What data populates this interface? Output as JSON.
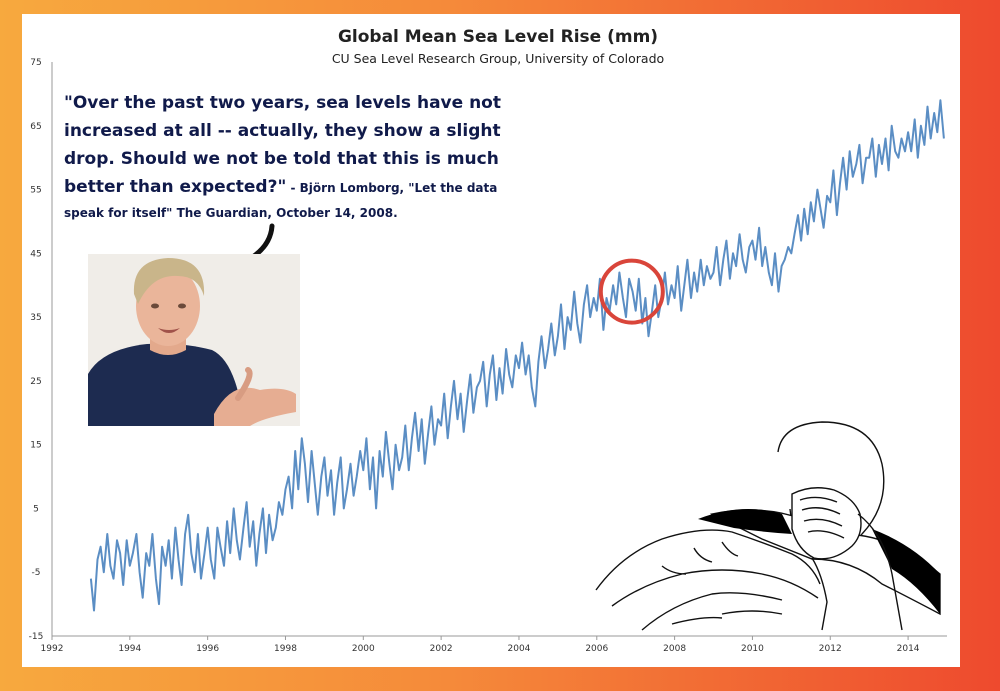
{
  "chart_data": {
    "type": "line",
    "title": "Global Mean Sea Level Rise (mm)",
    "subtitle": "CU Sea Level Research Group, University of Colorado",
    "xlabel": "",
    "ylabel": "",
    "xlim": [
      1992,
      2015
    ],
    "ylim": [
      -15,
      75
    ],
    "x_ticks": [
      "1992",
      "1994",
      "1996",
      "1998",
      "2000",
      "2002",
      "2004",
      "2006",
      "2008",
      "2010",
      "2012",
      "2014"
    ],
    "y_ticks": [
      "75",
      "65",
      "55",
      "45",
      "35",
      "25",
      "15",
      "5",
      "-5",
      "-15"
    ],
    "grid": false,
    "legend": "none",
    "series_color": "#5b8ec4",
    "highlight_color": "#d9453a",
    "series": [
      {
        "x": [
          1993.0,
          1993.08,
          1993.17,
          1993.25,
          1993.33,
          1993.42,
          1993.5,
          1993.58,
          1993.67,
          1993.75,
          1993.83,
          1993.92,
          1994.0,
          1994.08,
          1994.17,
          1994.25,
          1994.33,
          1994.42,
          1994.5,
          1994.58,
          1994.67,
          1994.75,
          1994.83,
          1994.92,
          1995.0,
          1995.08,
          1995.17,
          1995.25,
          1995.33,
          1995.42,
          1995.5,
          1995.58,
          1995.67,
          1995.75,
          1995.83,
          1995.92,
          1996.0,
          1996.08,
          1996.17,
          1996.25,
          1996.33,
          1996.42,
          1996.5,
          1996.58,
          1996.67,
          1996.75,
          1996.83,
          1996.92,
          1997.0,
          1997.08,
          1997.17,
          1997.25,
          1997.33,
          1997.42,
          1997.5,
          1997.58,
          1997.67,
          1997.75,
          1997.83,
          1997.92,
          1998.0,
          1998.08,
          1998.17,
          1998.25,
          1998.33,
          1998.42,
          1998.5,
          1998.58,
          1998.67,
          1998.75,
          1998.83,
          1998.92,
          1999.0,
          1999.08,
          1999.17,
          1999.25,
          1999.33,
          1999.42,
          1999.5,
          1999.58,
          1999.67,
          1999.75,
          1999.83,
          1999.92,
          2000.0,
          2000.08,
          2000.17,
          2000.25,
          2000.33,
          2000.42,
          2000.5,
          2000.58,
          2000.67,
          2000.75,
          2000.83,
          2000.92,
          2001.0,
          2001.08,
          2001.17,
          2001.25,
          2001.33,
          2001.42,
          2001.5,
          2001.58,
          2001.67,
          2001.75,
          2001.83,
          2001.92,
          2002.0,
          2002.08,
          2002.17,
          2002.25,
          2002.33,
          2002.42,
          2002.5,
          2002.58,
          2002.67,
          2002.75,
          2002.83,
          2002.92,
          2003.0,
          2003.08,
          2003.17,
          2003.25,
          2003.33,
          2003.42,
          2003.5,
          2003.58,
          2003.67,
          2003.75,
          2003.83,
          2003.92,
          2004.0,
          2004.08,
          2004.17,
          2004.25,
          2004.33,
          2004.42,
          2004.5,
          2004.58,
          2004.67,
          2004.75,
          2004.83,
          2004.92,
          2005.0,
          2005.08,
          2005.17,
          2005.25,
          2005.33,
          2005.42,
          2005.5,
          2005.58,
          2005.67,
          2005.75,
          2005.83,
          2005.92,
          2006.0,
          2006.08,
          2006.17,
          2006.25,
          2006.33,
          2006.42,
          2006.5,
          2006.58,
          2006.67,
          2006.75,
          2006.83,
          2006.92,
          2007.0,
          2007.08,
          2007.17,
          2007.25,
          2007.33,
          2007.42,
          2007.5,
          2007.58,
          2007.67,
          2007.75,
          2007.83,
          2007.92,
          2008.0,
          2008.08,
          2008.17,
          2008.25,
          2008.33,
          2008.42,
          2008.5,
          2008.58,
          2008.67,
          2008.75,
          2008.83,
          2008.92,
          2009.0,
          2009.08,
          2009.17,
          2009.25,
          2009.33,
          2009.42,
          2009.5,
          2009.58,
          2009.67,
          2009.75,
          2009.83,
          2009.92,
          2010.0,
          2010.08,
          2010.17,
          2010.25,
          2010.33,
          2010.42,
          2010.5,
          2010.58,
          2010.67,
          2010.75,
          2010.83,
          2010.92,
          2011.0,
          2011.08,
          2011.17,
          2011.25,
          2011.33,
          2011.42,
          2011.5,
          2011.58,
          2011.67,
          2011.75,
          2011.83,
          2011.92,
          2012.0,
          2012.08,
          2012.17,
          2012.25,
          2012.33,
          2012.42,
          2012.5,
          2012.58,
          2012.67,
          2012.75,
          2012.83,
          2012.92,
          2013.0,
          2013.08,
          2013.17,
          2013.25,
          2013.33,
          2013.42,
          2013.5,
          2013.58,
          2013.67,
          2013.75,
          2013.83,
          2013.92,
          2014.0,
          2014.08,
          2014.17,
          2014.25,
          2014.33,
          2014.42,
          2014.5,
          2014.58,
          2014.67,
          2014.75,
          2014.83,
          2014.92
        ],
        "y": [
          -6,
          -11,
          -3,
          -1,
          -5,
          1,
          -4,
          -6,
          0,
          -2,
          -7,
          0,
          -4,
          -2,
          1,
          -5,
          -9,
          -2,
          -4,
          1,
          -6,
          -10,
          -1,
          -4,
          0,
          -6,
          2,
          -3,
          -7,
          1,
          4,
          -2,
          -5,
          1,
          -6,
          -2,
          2,
          -3,
          -6,
          2,
          -1,
          -4,
          3,
          -2,
          5,
          0,
          -3,
          2,
          6,
          -1,
          3,
          -4,
          1,
          5,
          -2,
          4,
          0,
          2,
          6,
          4,
          8,
          10,
          5,
          14,
          8,
          16,
          12,
          6,
          14,
          9,
          4,
          10,
          13,
          7,
          11,
          4,
          9,
          13,
          5,
          8,
          12,
          7,
          10,
          14,
          11,
          16,
          8,
          13,
          5,
          14,
          10,
          17,
          12,
          8,
          15,
          11,
          13,
          18,
          11,
          16,
          20,
          14,
          19,
          12,
          17,
          21,
          15,
          19,
          18,
          23,
          16,
          21,
          25,
          19,
          23,
          17,
          22,
          26,
          20,
          24,
          25,
          28,
          21,
          26,
          29,
          22,
          27,
          23,
          30,
          26,
          24,
          29,
          27,
          31,
          26,
          29,
          24,
          21,
          28,
          32,
          27,
          30,
          34,
          29,
          32,
          37,
          30,
          35,
          33,
          39,
          34,
          31,
          37,
          40,
          35,
          38,
          36,
          41,
          33,
          38,
          36,
          40,
          37,
          42,
          38,
          35,
          41,
          39,
          36,
          41,
          34,
          38,
          32,
          36,
          40,
          35,
          38,
          42,
          37,
          40,
          38,
          43,
          36,
          40,
          44,
          38,
          42,
          39,
          44,
          40,
          43,
          41,
          42,
          46,
          40,
          44,
          47,
          41,
          45,
          43,
          48,
          44,
          42,
          46,
          47,
          44,
          49,
          43,
          46,
          42,
          40,
          45,
          39,
          43,
          44,
          46,
          45,
          48,
          51,
          47,
          52,
          48,
          53,
          50,
          55,
          52,
          49,
          54,
          53,
          58,
          51,
          56,
          60,
          55,
          61,
          57,
          59,
          62,
          56,
          60,
          60,
          63,
          57,
          62,
          59,
          63,
          58,
          65,
          61,
          60,
          63,
          61,
          64,
          61,
          66,
          60,
          65,
          62,
          68,
          63,
          67,
          64,
          69,
          63
        ]
      }
    ],
    "annotation": {
      "quote_lines": [
        "\"Over the past two years, sea levels have not",
        "increased at all -- actually, they show a slight",
        "drop. Should we not be told that this is much",
        "better than expected?\""
      ],
      "attribution_line1": " - Björn Lomborg, \"Let the data",
      "attribution_line2": "speak for itself\" The Guardian, October 14, 2008."
    },
    "highlight": {
      "x": 2006.9,
      "y": 39,
      "label": ""
    }
  },
  "figures": {
    "speaker_photo_icon": "person-photo",
    "facepalm_icon": "facepalm-drawing"
  }
}
